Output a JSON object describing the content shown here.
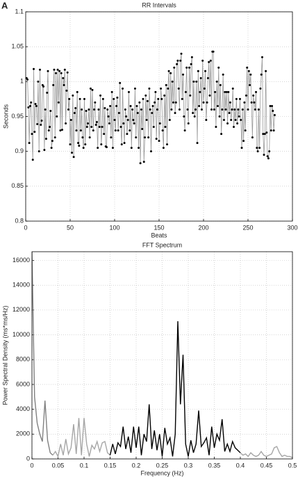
{
  "panel_label": "A",
  "chart_data": [
    {
      "type": "line",
      "title": "RR Intervals",
      "x_label": "Beats",
      "y_label": "Seconds",
      "xlim": [
        0,
        300
      ],
      "xticks": [
        0,
        50,
        100,
        150,
        200,
        250,
        300
      ],
      "ylim": [
        0.8,
        1.1
      ],
      "yticks": [
        0.8,
        0.85,
        0.9,
        0.95,
        1,
        1.05,
        1.1
      ],
      "grid": true,
      "color": "#999999",
      "marker": "circle",
      "marker_color": "#000000",
      "x": [
        1,
        2,
        3,
        4,
        5,
        6,
        7,
        8,
        9,
        10,
        11,
        12,
        13,
        14,
        15,
        16,
        17,
        18,
        19,
        20,
        21,
        22,
        23,
        24,
        25,
        26,
        27,
        28,
        29,
        30,
        31,
        32,
        33,
        34,
        35,
        36,
        37,
        38,
        39,
        40,
        41,
        42,
        43,
        44,
        45,
        46,
        47,
        48,
        49,
        50,
        51,
        52,
        53,
        54,
        55,
        56,
        57,
        58,
        59,
        60,
        61,
        62,
        63,
        64,
        65,
        66,
        67,
        68,
        69,
        70,
        71,
        72,
        73,
        74,
        75,
        76,
        77,
        78,
        79,
        80,
        81,
        82,
        83,
        84,
        85,
        86,
        87,
        88,
        89,
        90,
        91,
        92,
        93,
        94,
        95,
        96,
        97,
        98,
        99,
        100,
        101,
        102,
        103,
        104,
        105,
        106,
        107,
        108,
        109,
        110,
        111,
        112,
        113,
        114,
        115,
        116,
        117,
        118,
        119,
        120,
        121,
        122,
        123,
        124,
        125,
        126,
        127,
        128,
        129,
        130,
        131,
        132,
        133,
        134,
        135,
        136,
        137,
        138,
        139,
        140,
        141,
        142,
        143,
        144,
        145,
        146,
        147,
        148,
        149,
        150,
        151,
        152,
        153,
        154,
        155,
        156,
        157,
        158,
        159,
        160,
        161,
        162,
        163,
        164,
        165,
        166,
        167,
        168,
        169,
        170,
        171,
        172,
        173,
        174,
        175,
        176,
        177,
        178,
        179,
        180,
        181,
        182,
        183,
        184,
        185,
        186,
        187,
        188,
        189,
        190,
        191,
        192,
        193,
        194,
        195,
        196,
        197,
        198,
        199,
        200,
        201,
        202,
        203,
        204,
        205,
        206,
        207,
        208,
        209,
        210,
        211,
        212,
        213,
        214,
        215,
        216,
        217,
        218,
        219,
        220,
        221,
        222,
        223,
        224,
        225,
        226,
        227,
        228,
        229,
        230,
        231,
        232,
        233,
        234,
        235,
        236,
        237,
        238,
        239,
        240,
        241,
        242,
        243,
        244,
        245,
        246,
        247,
        248,
        249,
        250,
        251,
        252,
        253,
        254,
        255,
        256,
        257,
        258,
        259,
        260,
        261,
        262,
        263,
        264,
        265,
        266,
        267,
        268,
        269,
        270,
        271,
        272,
        273,
        274,
        275,
        276,
        277,
        278,
        279,
        280
      ],
      "values": [
        1.005,
        1.003,
        0.963,
        0.912,
        0.965,
        0.97,
        0.925,
        0.888,
        1.018,
        0.928,
        0.968,
        0.965,
        0.939,
        1.0,
        0.9,
        1.017,
        0.938,
        0.944,
        0.995,
        0.993,
        0.902,
        0.96,
        0.918,
        0.984,
        1.015,
        0.93,
        0.935,
        0.958,
        0.905,
        0.915,
        0.995,
        1.017,
        0.92,
        1.012,
        0.95,
        1.017,
        0.97,
        1.015,
        0.93,
        1.012,
        0.931,
        1.005,
        0.995,
        1.017,
        0.94,
        0.987,
        1.013,
        0.96,
        0.975,
        0.91,
        0.945,
        0.898,
        0.98,
        0.892,
        0.955,
        0.962,
        0.93,
        0.985,
        0.912,
        0.908,
        0.975,
        0.93,
        0.96,
        0.92,
        0.905,
        0.975,
        0.91,
        0.958,
        0.935,
        0.94,
        0.96,
        0.92,
        0.99,
        0.935,
        0.988,
        0.93,
        0.96,
        0.97,
        0.938,
        0.942,
        0.905,
        0.96,
        0.935,
        0.98,
        0.91,
        0.935,
        0.975,
        0.925,
        0.962,
        0.907,
        0.906,
        0.96,
        0.95,
        0.94,
        0.965,
        0.92,
        0.985,
        0.905,
        0.975,
        0.945,
        0.93,
        0.965,
        0.977,
        0.93,
        0.955,
        0.998,
        0.935,
        0.91,
        0.99,
        0.94,
        0.912,
        0.96,
        0.95,
        0.925,
        0.945,
        0.985,
        0.93,
        0.965,
        0.905,
        0.96,
        0.945,
        0.94,
        0.99,
        0.92,
        0.965,
        0.955,
        0.905,
        0.97,
        0.883,
        0.96,
        0.932,
        0.975,
        0.885,
        0.92,
        0.98,
        0.945,
        0.972,
        0.92,
        0.99,
        0.96,
        0.9,
        0.955,
        0.965,
        0.935,
        0.97,
        0.985,
        0.918,
        0.96,
        0.975,
        0.915,
        0.94,
        0.99,
        0.975,
        0.93,
        0.905,
        0.98,
        0.935,
        0.995,
        0.91,
        0.99,
        1.015,
        0.945,
        1.012,
        0.96,
        1.0,
        0.97,
        1.02,
        0.955,
        0.97,
        1.025,
        1.03,
        0.99,
        0.96,
        1.03,
        1.04,
        0.975,
        1.01,
        0.95,
        0.93,
        0.985,
        1.02,
        0.96,
        0.94,
        1.02,
        0.98,
        1.025,
        1.035,
        0.955,
        1.0,
        0.95,
        0.96,
        1.0,
        0.912,
        1.015,
        0.965,
        0.985,
        1.005,
        0.96,
        1.03,
        0.97,
        0.99,
        1.015,
        0.945,
        0.97,
        1.005,
        1.028,
        0.98,
        1.03,
        0.96,
        1.043,
        1.043,
        0.96,
        0.985,
        0.935,
        1.0,
        0.965,
        1.02,
        0.95,
        0.995,
        0.925,
        0.96,
        1.01,
        0.945,
        0.985,
        0.96,
        0.985,
        0.94,
        0.985,
        0.955,
        0.97,
        0.945,
        0.96,
        0.99,
        0.935,
        0.96,
        0.945,
        0.975,
        0.94,
        0.96,
        0.95,
        0.975,
        0.945,
        0.905,
        0.96,
        0.915,
        0.97,
        0.93,
        0.98,
        1.02,
        0.96,
        1.015,
        0.995,
        1.01,
        0.97,
        0.92,
        0.98,
        0.97,
        0.96,
        0.985,
        0.905,
        0.9,
        0.96,
        0.905,
        0.99,
        1.01,
        1.035,
        0.925,
        0.895,
        0.925,
        1.015,
        0.927,
        0.893,
        0.89,
        0.9,
        0.965,
        0.93,
        0.965,
        0.958,
        0.93,
        0.952
      ]
    },
    {
      "type": "line",
      "title": "FFT Spectrum",
      "x_label": "Frequency (Hz)",
      "y_label": "Power Spectral Density (ms*ms/Hz)",
      "xlim": [
        0,
        0.5
      ],
      "xticks": [
        0,
        0.05,
        0.1,
        0.15,
        0.2,
        0.25,
        0.3,
        0.35,
        0.4,
        0.45,
        0.5
      ],
      "ylim": [
        0,
        16700
      ],
      "yticks": [
        0,
        2000,
        4000,
        6000,
        8000,
        10000,
        12000,
        14000,
        16000
      ],
      "grid": true,
      "series": [
        {
          "color": "#808080",
          "x": [
            0,
            0.005,
            0.01,
            0.015,
            0.02,
            0.025,
            0.03,
            0.035,
            0.04
          ],
          "values": [
            16700,
            5000,
            2900,
            2000,
            1400,
            4700,
            1500,
            500,
            300
          ]
        },
        {
          "color": "#a6a6a6",
          "x": [
            0.04,
            0.045,
            0.05,
            0.055,
            0.06,
            0.065,
            0.07,
            0.075,
            0.08,
            0.085,
            0.09,
            0.095,
            0.1,
            0.105,
            0.11,
            0.115,
            0.12,
            0.125,
            0.13,
            0.135,
            0.14,
            0.145,
            0.15
          ],
          "values": [
            300,
            600,
            200,
            1200,
            300,
            1600,
            400,
            900,
            2800,
            400,
            3300,
            300,
            3300,
            1200,
            200,
            1100,
            800,
            1400,
            600,
            1300,
            1400,
            500,
            300
          ]
        },
        {
          "color": "#000000",
          "x": [
            0.15,
            0.155,
            0.16,
            0.165,
            0.17,
            0.175,
            0.18,
            0.185,
            0.19,
            0.195,
            0.2,
            0.205,
            0.21,
            0.215,
            0.22,
            0.225,
            0.23,
            0.235,
            0.24,
            0.245,
            0.25,
            0.255,
            0.26,
            0.265,
            0.27,
            0.275,
            0.28,
            0.285,
            0.29,
            0.295,
            0.3,
            0.305,
            0.31,
            0.315,
            0.32,
            0.325,
            0.33,
            0.335,
            0.34,
            0.345,
            0.35,
            0.355,
            0.36,
            0.365,
            0.37,
            0.375,
            0.38,
            0.385,
            0.39,
            0.395,
            0.4
          ],
          "values": [
            300,
            1200,
            400,
            1300,
            1000,
            2600,
            800,
            1800,
            500,
            2600,
            900,
            2600,
            300,
            2000,
            1400,
            4400,
            800,
            2300,
            700,
            2000,
            200,
            2500,
            1200,
            1700,
            200,
            2000,
            11100,
            4400,
            8400,
            1200,
            200,
            1500,
            500,
            1200,
            3900,
            1000,
            1300,
            1700,
            300,
            2600,
            900,
            2000,
            1500,
            3200,
            600,
            1200,
            600,
            1400,
            900,
            700,
            500
          ]
        },
        {
          "color": "#a6a6a6",
          "x": [
            0.4,
            0.405,
            0.41,
            0.415,
            0.42,
            0.425,
            0.43,
            0.435,
            0.44,
            0.445,
            0.45,
            0.455,
            0.46,
            0.465,
            0.47,
            0.475,
            0.48,
            0.485,
            0.49,
            0.495,
            0.5
          ],
          "values": [
            500,
            300,
            400,
            200,
            500,
            300,
            200,
            300,
            600,
            300,
            200,
            300,
            400,
            900,
            1000,
            500,
            200,
            300,
            200,
            200,
            100
          ]
        }
      ]
    }
  ]
}
